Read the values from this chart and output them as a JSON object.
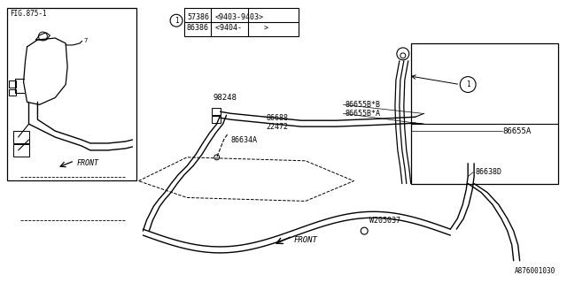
{
  "bg_color": "#ffffff",
  "line_color": "#000000",
  "fig_width": 6.4,
  "fig_height": 3.2,
  "dpi": 100,
  "watermark": "A876001030",
  "legend": {
    "rows": [
      {
        "part": "57386",
        "date": "<9403-9403>"
      },
      {
        "part": "86386",
        "date": "<9404-     >"
      }
    ]
  }
}
